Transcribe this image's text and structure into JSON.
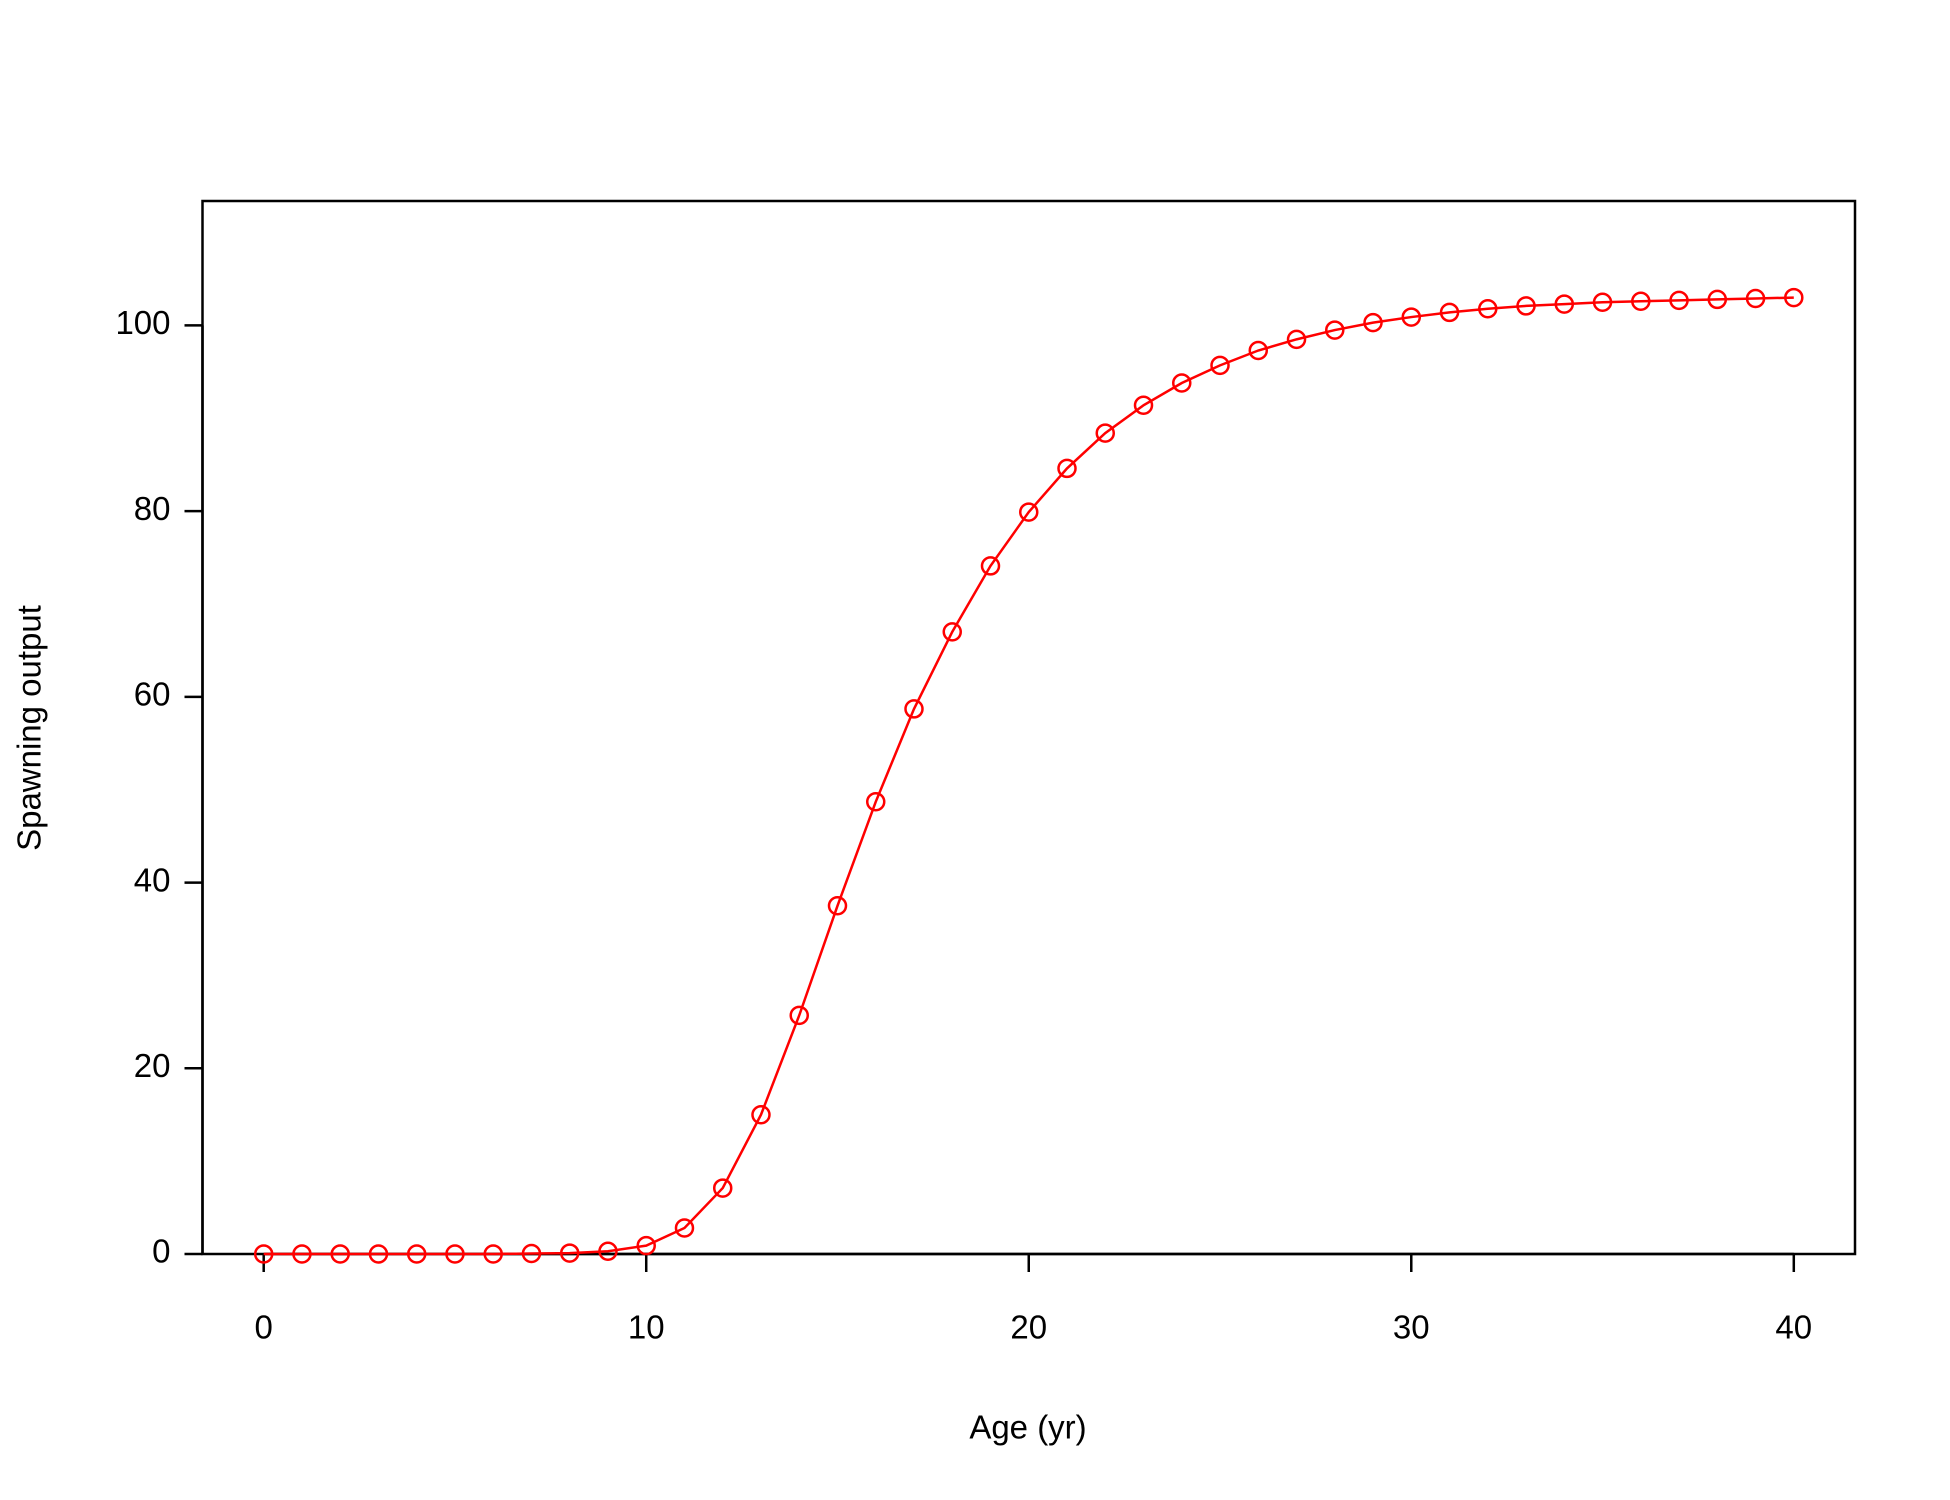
{
  "chart_data": {
    "type": "line",
    "markers": "open-circle",
    "x_label": "Age (yr)",
    "y_label": "Spawning output",
    "x": [
      0,
      1,
      2,
      3,
      4,
      5,
      6,
      7,
      8,
      9,
      10,
      11,
      12,
      13,
      14,
      15,
      16,
      17,
      18,
      19,
      20,
      21,
      22,
      23,
      24,
      25,
      26,
      27,
      28,
      29,
      30,
      31,
      32,
      33,
      34,
      35,
      36,
      37,
      38,
      39,
      40
    ],
    "values": [
      0,
      0,
      0,
      0,
      0,
      0,
      0,
      0.05,
      0.1,
      0.3,
      0.9,
      2.8,
      7.1,
      15.0,
      25.7,
      37.5,
      48.7,
      58.7,
      67.0,
      74.1,
      79.9,
      84.6,
      88.4,
      91.4,
      93.8,
      95.7,
      97.3,
      98.5,
      99.5,
      100.3,
      100.9,
      101.4,
      101.8,
      102.1,
      102.3,
      102.5,
      102.6,
      102.7,
      102.8,
      102.9,
      103.0
    ],
    "color": "#ff0000",
    "xlim": [
      -1.6,
      41.6
    ],
    "xticks": [
      0,
      10,
      20,
      30,
      40
    ],
    "ylim": [
      0,
      113.4
    ],
    "yticks": [
      0,
      20,
      40,
      60,
      80,
      100
    ]
  }
}
